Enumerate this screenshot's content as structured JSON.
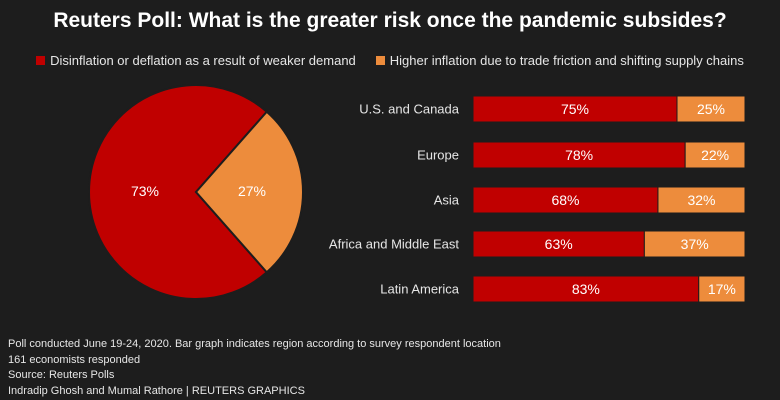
{
  "chart_data": {
    "title": "Reuters Poll: What is the greater risk once the pandemic subsides?",
    "legend": [
      {
        "label": "Disinflation or deflation as a result of weaker demand",
        "color": "#c00000"
      },
      {
        "label": "Higher inflation due to trade friction and shifting supply chains",
        "color": "#ed8c3c"
      }
    ],
    "pie": {
      "type": "pie",
      "slices": [
        {
          "value": 73,
          "label": "73%",
          "color": "#c00000"
        },
        {
          "value": 27,
          "label": "27%",
          "color": "#ed8c3c"
        }
      ]
    },
    "bars": {
      "type": "bar",
      "orientation": "horizontal",
      "stacked": true,
      "categories": [
        "U.S. and Canada",
        "Europe",
        "Asia",
        "Africa and Middle East",
        "Latin America"
      ],
      "series": [
        {
          "values": [
            75,
            78,
            68,
            63,
            83
          ],
          "labels": [
            "75%",
            "78%",
            "68%",
            "63%",
            "83%"
          ],
          "color": "#c00000"
        },
        {
          "values": [
            25,
            22,
            32,
            37,
            17
          ],
          "labels": [
            "25%",
            "22%",
            "32%",
            "37%",
            "17%"
          ],
          "color": "#ed8c3c"
        }
      ],
      "xlim": [
        0,
        100
      ]
    }
  },
  "footnotes": [
    "Poll conducted June 19-24, 2020. Bar graph indicates region according to survey respondent location",
    "161 economists responded",
    "Source: Reuters Polls",
    "Indradip Ghosh and Mumal Rathore | REUTERS GRAPHICS"
  ]
}
